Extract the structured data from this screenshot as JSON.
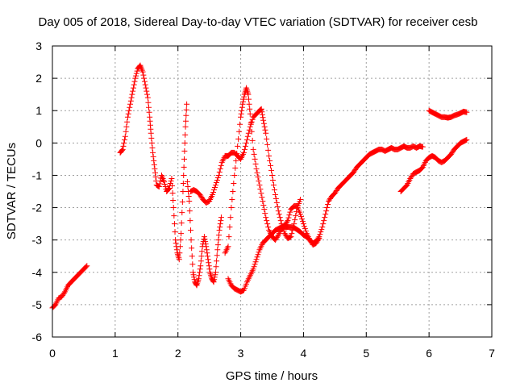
{
  "chart_data": {
    "type": "scatter",
    "title": "Day 005 of 2018, Sidereal Day-to-day VTEC variation (SDTVAR) for receiver cesb",
    "xlabel": "GPS time / hours",
    "ylabel": "SDTVAR / TECUs",
    "xlim": [
      0,
      7
    ],
    "ylim": [
      -6,
      3
    ],
    "xticks": [
      "0",
      "1",
      "2",
      "3",
      "4",
      "5",
      "6",
      "7"
    ],
    "yticks": [
      "-6",
      "-5",
      "-4",
      "-3",
      "-2",
      "-1",
      "0",
      "1",
      "2",
      "3"
    ],
    "grid": true,
    "marker": "plus",
    "color": "#ff0000",
    "series": [
      {
        "segments": [
          [
            [
              0.0,
              -5.1
            ],
            [
              0.05,
              -5.0
            ],
            [
              0.1,
              -4.8
            ],
            [
              0.15,
              -4.75
            ],
            [
              0.2,
              -4.6
            ],
            [
              0.25,
              -4.4
            ],
            [
              0.3,
              -4.3
            ],
            [
              0.35,
              -4.2
            ],
            [
              0.4,
              -4.1
            ],
            [
              0.45,
              -4.0
            ],
            [
              0.5,
              -3.9
            ],
            [
              0.55,
              -3.8
            ]
          ],
          [
            [
              1.08,
              -0.3
            ],
            [
              1.12,
              -0.2
            ],
            [
              1.16,
              0.2
            ],
            [
              1.2,
              0.8
            ],
            [
              1.24,
              1.2
            ],
            [
              1.28,
              1.6
            ],
            [
              1.32,
              2.0
            ],
            [
              1.36,
              2.3
            ],
            [
              1.4,
              2.4
            ],
            [
              1.44,
              2.2
            ],
            [
              1.48,
              1.8
            ],
            [
              1.52,
              1.4
            ],
            [
              1.55,
              0.8
            ],
            [
              1.57,
              0.3
            ],
            [
              1.6,
              -0.3
            ],
            [
              1.63,
              -0.8
            ],
            [
              1.66,
              -1.3
            ],
            [
              1.7,
              -1.35
            ],
            [
              1.74,
              -1.0
            ],
            [
              1.78,
              -1.2
            ],
            [
              1.82,
              -1.5
            ],
            [
              1.86,
              -1.4
            ],
            [
              1.9,
              -1.1
            ],
            [
              1.93,
              -2.0
            ],
            [
              1.96,
              -3.0
            ],
            [
              1.99,
              -3.4
            ],
            [
              2.02,
              -3.6
            ],
            [
              2.05,
              -2.8
            ],
            [
              2.08,
              -1.5
            ],
            [
              2.1,
              -0.5
            ],
            [
              2.12,
              0.5
            ],
            [
              2.14,
              1.2
            ]
          ],
          [
            [
              2.15,
              -1.2
            ],
            [
              2.18,
              -1.8
            ],
            [
              2.21,
              -3.0
            ],
            [
              2.24,
              -4.0
            ],
            [
              2.27,
              -4.3
            ],
            [
              2.3,
              -4.4
            ],
            [
              2.33,
              -4.2
            ],
            [
              2.36,
              -3.8
            ],
            [
              2.39,
              -3.2
            ],
            [
              2.42,
              -2.9
            ],
            [
              2.45,
              -3.2
            ],
            [
              2.48,
              -3.6
            ],
            [
              2.51,
              -4.0
            ],
            [
              2.54,
              -4.2
            ],
            [
              2.57,
              -4.3
            ],
            [
              2.6,
              -4.0
            ],
            [
              2.63,
              -3.3
            ],
            [
              2.66,
              -2.7
            ],
            [
              2.69,
              -2.3
            ]
          ],
          [
            [
              2.2,
              -1.5
            ],
            [
              2.25,
              -1.45
            ],
            [
              2.3,
              -1.5
            ],
            [
              2.35,
              -1.6
            ],
            [
              2.4,
              -1.75
            ],
            [
              2.45,
              -1.85
            ],
            [
              2.5,
              -1.8
            ],
            [
              2.55,
              -1.6
            ],
            [
              2.6,
              -1.3
            ],
            [
              2.65,
              -1.0
            ],
            [
              2.7,
              -0.6
            ],
            [
              2.75,
              -0.4
            ],
            [
              2.8,
              -0.4
            ],
            [
              2.85,
              -0.3
            ],
            [
              2.9,
              -0.3
            ],
            [
              2.95,
              -0.4
            ],
            [
              3.0,
              -0.5
            ],
            [
              3.05,
              -0.3
            ],
            [
              3.1,
              0.1
            ],
            [
              3.15,
              0.5
            ],
            [
              3.2,
              0.8
            ],
            [
              3.25,
              0.9
            ],
            [
              3.3,
              1.0
            ],
            [
              3.33,
              1.05
            ],
            [
              3.36,
              0.7
            ],
            [
              3.4,
              0.3
            ],
            [
              3.45,
              -0.4
            ],
            [
              3.5,
              -1.0
            ],
            [
              3.55,
              -1.6
            ],
            [
              3.6,
              -2.1
            ],
            [
              3.65,
              -2.5
            ],
            [
              3.7,
              -2.8
            ],
            [
              3.75,
              -2.95
            ],
            [
              3.8,
              -2.9
            ],
            [
              3.85,
              -2.5
            ],
            [
              3.9,
              -2.0
            ],
            [
              3.95,
              -1.75
            ]
          ],
          [
            [
              2.8,
              -4.2
            ],
            [
              2.85,
              -4.4
            ],
            [
              2.9,
              -4.5
            ],
            [
              2.95,
              -4.55
            ],
            [
              3.0,
              -4.6
            ],
            [
              3.05,
              -4.55
            ],
            [
              3.1,
              -4.3
            ],
            [
              3.15,
              -4.1
            ],
            [
              3.2,
              -3.9
            ],
            [
              3.25,
              -3.6
            ],
            [
              3.3,
              -3.3
            ],
            [
              3.35,
              -3.1
            ],
            [
              3.4,
              -3.0
            ],
            [
              3.45,
              -2.9
            ],
            [
              3.5,
              -2.8
            ],
            [
              3.55,
              -2.7
            ],
            [
              3.6,
              -2.65
            ],
            [
              3.65,
              -2.6
            ],
            [
              3.7,
              -2.6
            ],
            [
              3.75,
              -2.6
            ],
            [
              3.8,
              -2.6
            ],
            [
              3.85,
              -2.62
            ],
            [
              3.9,
              -2.68
            ],
            [
              3.95,
              -2.75
            ],
            [
              4.0,
              -2.85
            ],
            [
              4.05,
              -2.9
            ],
            [
              4.1,
              -3.0
            ],
            [
              4.15,
              -3.1
            ],
            [
              4.2,
              -3.05
            ],
            [
              4.25,
              -2.9
            ],
            [
              4.3,
              -2.6
            ],
            [
              4.35,
              -2.2
            ],
            [
              4.4,
              -1.8
            ],
            [
              4.45,
              -1.65
            ],
            [
              4.5,
              -1.55
            ],
            [
              4.55,
              -1.4
            ],
            [
              4.6,
              -1.3
            ],
            [
              4.65,
              -1.2
            ],
            [
              4.7,
              -1.1
            ],
            [
              4.75,
              -1.0
            ],
            [
              4.8,
              -0.9
            ],
            [
              4.85,
              -0.75
            ],
            [
              4.9,
              -0.65
            ],
            [
              4.95,
              -0.55
            ],
            [
              5.0,
              -0.45
            ],
            [
              5.05,
              -0.35
            ],
            [
              5.1,
              -0.3
            ],
            [
              5.15,
              -0.25
            ],
            [
              5.2,
              -0.2
            ],
            [
              5.25,
              -0.2
            ],
            [
              5.3,
              -0.25
            ],
            [
              5.35,
              -0.2
            ],
            [
              5.4,
              -0.15
            ],
            [
              5.45,
              -0.2
            ],
            [
              5.5,
              -0.2
            ],
            [
              5.55,
              -0.15
            ],
            [
              5.6,
              -0.1
            ],
            [
              5.65,
              -0.15
            ],
            [
              5.7,
              -0.15
            ],
            [
              5.75,
              -0.1
            ],
            [
              5.8,
              -0.15
            ],
            [
              5.85,
              -0.1
            ],
            [
              5.9,
              -0.12
            ]
          ],
          [
            [
              2.75,
              -3.4
            ],
            [
              2.8,
              -3.2
            ],
            [
              2.85,
              -2.0
            ],
            [
              2.9,
              -1.0
            ],
            [
              2.95,
              -0.1
            ],
            [
              3.0,
              0.8
            ],
            [
              3.03,
              1.2
            ],
            [
              3.06,
              1.5
            ],
            [
              3.09,
              1.7
            ],
            [
              3.12,
              1.5
            ],
            [
              3.15,
              0.9
            ],
            [
              3.2,
              -0.2
            ],
            [
              3.25,
              -0.8
            ],
            [
              3.3,
              -1.3
            ],
            [
              3.35,
              -1.8
            ],
            [
              3.4,
              -2.3
            ],
            [
              3.45,
              -2.7
            ],
            [
              3.5,
              -2.9
            ],
            [
              3.55,
              -3.0
            ],
            [
              3.6,
              -2.85
            ],
            [
              3.65,
              -2.65
            ],
            [
              3.7,
              -2.55
            ],
            [
              3.75,
              -2.4
            ],
            [
              3.8,
              -2.05
            ],
            [
              3.85,
              -1.95
            ],
            [
              3.9,
              -1.95
            ],
            [
              3.95,
              -2.2
            ],
            [
              4.0,
              -2.5
            ],
            [
              4.05,
              -2.8
            ],
            [
              4.1,
              -3.0
            ],
            [
              4.15,
              -3.15
            ],
            [
              4.2,
              -3.1
            ],
            [
              4.25,
              -2.95
            ]
          ],
          [
            [
              5.55,
              -1.5
            ],
            [
              5.6,
              -1.4
            ],
            [
              5.65,
              -1.3
            ],
            [
              5.7,
              -1.1
            ],
            [
              5.75,
              -0.95
            ],
            [
              5.8,
              -0.9
            ],
            [
              5.85,
              -0.85
            ],
            [
              5.9,
              -0.75
            ],
            [
              5.95,
              -0.55
            ],
            [
              6.0,
              -0.45
            ],
            [
              6.05,
              -0.4
            ],
            [
              6.1,
              -0.45
            ],
            [
              6.15,
              -0.55
            ],
            [
              6.2,
              -0.6
            ],
            [
              6.25,
              -0.55
            ],
            [
              6.3,
              -0.45
            ],
            [
              6.35,
              -0.35
            ],
            [
              6.4,
              -0.2
            ],
            [
              6.45,
              -0.1
            ],
            [
              6.5,
              0.0
            ],
            [
              6.55,
              0.05
            ],
            [
              6.6,
              0.1
            ]
          ],
          [
            [
              6.0,
              1.0
            ],
            [
              6.05,
              0.95
            ],
            [
              6.1,
              0.9
            ],
            [
              6.15,
              0.85
            ],
            [
              6.2,
              0.8
            ],
            [
              6.25,
              0.8
            ],
            [
              6.3,
              0.78
            ],
            [
              6.35,
              0.8
            ],
            [
              6.4,
              0.85
            ],
            [
              6.45,
              0.88
            ],
            [
              6.5,
              0.92
            ],
            [
              6.55,
              0.97
            ],
            [
              6.6,
              0.95
            ]
          ]
        ]
      }
    ]
  }
}
